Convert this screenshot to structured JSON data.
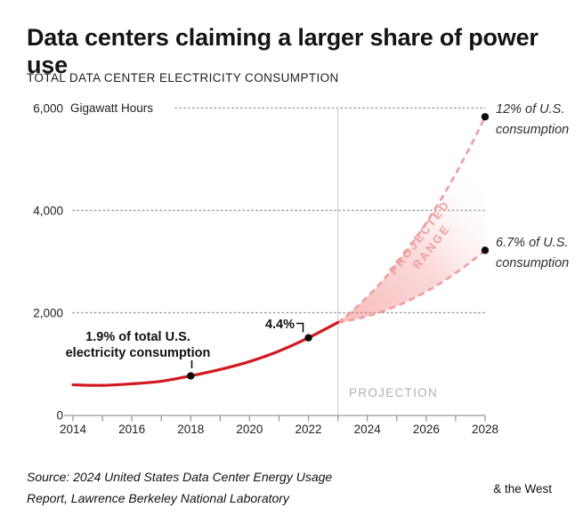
{
  "page": {
    "title": "Data centers claiming a larger share of power use",
    "subtitle": "TOTAL DATA CENTER ELECTRICITY CONSUMPTION",
    "source_line1": "Source: 2024 United States Data Center Energy Usage",
    "source_line2": "Report, Lawrence Berkeley National Laboratory",
    "brand": "& the West"
  },
  "chart_data": {
    "type": "line",
    "title": "TOTAL DATA CENTER ELECTRICITY CONSUMPTION",
    "unit_label": "Gigawatt Hours",
    "xlim": [
      2014,
      2028
    ],
    "ylim": [
      0,
      6000
    ],
    "y_ticks": [
      0,
      2000,
      4000,
      6000
    ],
    "y_tick_labels": [
      "0",
      "2,000",
      "4,000",
      "6,000"
    ],
    "x_tick_years": [
      2014,
      2015,
      2016,
      2017,
      2018,
      2019,
      2020,
      2021,
      2022,
      2023,
      2024,
      2025,
      2026,
      2027,
      2028
    ],
    "x_tick_labels": [
      "2014",
      "2016",
      "2018",
      "2020",
      "2022",
      "2024",
      "2026",
      "2028"
    ],
    "grid": "dotted-horizontal",
    "projection_start_year": 2023,
    "series": [
      {
        "name": "historical",
        "x": [
          2014,
          2015,
          2016,
          2017,
          2018,
          2019,
          2020,
          2021,
          2022,
          2023
        ],
        "values": [
          590,
          580,
          610,
          660,
          765,
          890,
          1045,
          1250,
          1510,
          1810
        ],
        "style": "solid",
        "color": "#d2191f"
      },
      {
        "name": "projection_high",
        "x": [
          2023,
          2028
        ],
        "values": [
          1810,
          5830
        ],
        "style": "dashed",
        "color": "#f29c9c"
      },
      {
        "name": "projection_low",
        "x": [
          2023,
          2028
        ],
        "values": [
          1810,
          3220
        ],
        "style": "dashed",
        "color": "#f29c9c"
      }
    ],
    "annotations": {
      "p2018": {
        "year": 2018,
        "value": 765,
        "line1": "1.9% of total U.S.",
        "line2": "electricity consumption"
      },
      "p2022": {
        "year": 2022,
        "value": 1510,
        "label": "4.4%"
      },
      "high": {
        "year": 2028,
        "value": 5830,
        "line1": "12% of U.S.",
        "line2": "consumption"
      },
      "low": {
        "year": 2028,
        "value": 3220,
        "line1": "6.7% of U.S.",
        "line2": "consumption"
      },
      "range_label_line1": "PROJECTED",
      "range_label_line2": "RANGE",
      "projection_label": "PROJECTION"
    },
    "colors": {
      "historical_line": "#d2191f",
      "projection_dash": "#f29c9c",
      "projection_fill": "#f07878",
      "dot": "#0d0d0d",
      "axis": "#999999",
      "divider": "#c9c9c9",
      "projection_text": "#b1b1b1",
      "range_text": "#efa0a0"
    }
  }
}
